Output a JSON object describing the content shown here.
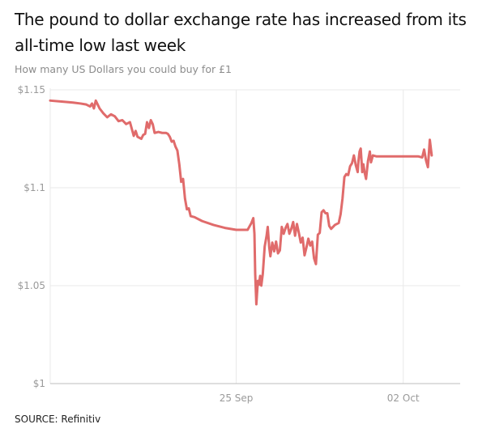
{
  "header": {
    "title": "The pound to dollar exchange rate has increased from its all-time low last week",
    "subtitle": "How many US Dollars you could buy for £1"
  },
  "footer": {
    "source": "SOURCE: Refinitiv"
  },
  "colors": {
    "line": "#e06b6b",
    "grid": "#e9e9e9",
    "axis": "#bdbdbd",
    "tick_text": "#9a9a9a"
  },
  "chart_data": {
    "type": "line",
    "title": "The pound to dollar exchange rate has increased from its all-time low last week",
    "subtitle": "How many US Dollars you could buy for £1",
    "xlabel": "",
    "ylabel": "",
    "ylim": [
      1.0,
      1.15
    ],
    "xlim": [
      0,
      10.8
    ],
    "grid": true,
    "legend": "none",
    "x_ticks": [
      {
        "x": 4.9,
        "label": "25 Sep"
      },
      {
        "x": 9.3,
        "label": "02 Oct"
      }
    ],
    "y_ticks": [
      {
        "y": 1.0,
        "label": "$1"
      },
      {
        "y": 1.05,
        "label": "$1.05"
      },
      {
        "y": 1.1,
        "label": "$1.1"
      },
      {
        "y": 1.15,
        "label": "$1.15"
      }
    ],
    "series": [
      {
        "values": [
          [
            0.0,
            1.1445
          ],
          [
            0.3,
            1.144
          ],
          [
            0.6,
            1.1435
          ],
          [
            0.8,
            1.143
          ],
          [
            0.95,
            1.1425
          ],
          [
            1.05,
            1.1415
          ],
          [
            1.1,
            1.143
          ],
          [
            1.15,
            1.1405
          ],
          [
            1.2,
            1.1445
          ],
          [
            1.3,
            1.1405
          ],
          [
            1.4,
            1.138
          ],
          [
            1.5,
            1.136
          ],
          [
            1.6,
            1.1375
          ],
          [
            1.7,
            1.1365
          ],
          [
            1.8,
            1.134
          ],
          [
            1.9,
            1.1345
          ],
          [
            2.0,
            1.1325
          ],
          [
            2.1,
            1.1335
          ],
          [
            2.15,
            1.13
          ],
          [
            2.2,
            1.1265
          ],
          [
            2.25,
            1.129
          ],
          [
            2.3,
            1.126
          ],
          [
            2.4,
            1.125
          ],
          [
            2.45,
            1.127
          ],
          [
            2.5,
            1.1275
          ],
          [
            2.55,
            1.1335
          ],
          [
            2.6,
            1.1305
          ],
          [
            2.65,
            1.1345
          ],
          [
            2.7,
            1.1325
          ],
          [
            2.75,
            1.128
          ],
          [
            2.85,
            1.1285
          ],
          [
            2.95,
            1.128
          ],
          [
            3.05,
            1.128
          ],
          [
            3.1,
            1.1275
          ],
          [
            3.15,
            1.126
          ],
          [
            3.2,
            1.1235
          ],
          [
            3.25,
            1.124
          ],
          [
            3.3,
            1.121
          ],
          [
            3.35,
            1.119
          ],
          [
            3.4,
            1.112
          ],
          [
            3.45,
            1.103
          ],
          [
            3.5,
            1.1045
          ],
          [
            3.55,
            1.0945
          ],
          [
            3.6,
            1.089
          ],
          [
            3.65,
            1.0895
          ],
          [
            3.7,
            1.0855
          ],
          [
            3.8,
            1.085
          ],
          [
            4.0,
            1.083
          ],
          [
            4.3,
            1.081
          ],
          [
            4.6,
            1.0795
          ],
          [
            4.9,
            1.0785
          ],
          [
            5.2,
            1.0785
          ],
          [
            5.3,
            1.082
          ],
          [
            5.35,
            1.0845
          ],
          [
            5.38,
            1.0765
          ],
          [
            5.4,
            1.056
          ],
          [
            5.43,
            1.0405
          ],
          [
            5.47,
            1.0525
          ],
          [
            5.5,
            1.0505
          ],
          [
            5.53,
            1.055
          ],
          [
            5.56,
            1.05
          ],
          [
            5.6,
            1.056
          ],
          [
            5.65,
            1.07
          ],
          [
            5.7,
            1.0755
          ],
          [
            5.73,
            1.08
          ],
          [
            5.77,
            1.0695
          ],
          [
            5.8,
            1.065
          ],
          [
            5.85,
            1.072
          ],
          [
            5.9,
            1.0675
          ],
          [
            5.95,
            1.0725
          ],
          [
            6.0,
            1.0665
          ],
          [
            6.05,
            1.068
          ],
          [
            6.1,
            1.08
          ],
          [
            6.15,
            1.0765
          ],
          [
            6.2,
            1.0795
          ],
          [
            6.25,
            1.0815
          ],
          [
            6.3,
            1.0765
          ],
          [
            6.35,
            1.079
          ],
          [
            6.4,
            1.0825
          ],
          [
            6.45,
            1.0755
          ],
          [
            6.5,
            1.0815
          ],
          [
            6.55,
            1.077
          ],
          [
            6.6,
            1.072
          ],
          [
            6.65,
            1.0745
          ],
          [
            6.7,
            1.0655
          ],
          [
            6.75,
            1.0695
          ],
          [
            6.8,
            1.074
          ],
          [
            6.85,
            1.0705
          ],
          [
            6.9,
            1.0725
          ],
          [
            6.95,
            1.064
          ],
          [
            7.0,
            1.061
          ],
          [
            7.05,
            1.076
          ],
          [
            7.1,
            1.077
          ],
          [
            7.15,
            1.0875
          ],
          [
            7.2,
            1.0885
          ],
          [
            7.25,
            1.087
          ],
          [
            7.3,
            1.087
          ],
          [
            7.35,
            1.0805
          ],
          [
            7.4,
            1.079
          ],
          [
            7.5,
            1.081
          ],
          [
            7.6,
            1.082
          ],
          [
            7.65,
            1.0865
          ],
          [
            7.7,
            1.0945
          ],
          [
            7.75,
            1.1055
          ],
          [
            7.8,
            1.107
          ],
          [
            7.85,
            1.1065
          ],
          [
            7.9,
            1.111
          ],
          [
            7.95,
            1.1125
          ],
          [
            8.0,
            1.1165
          ],
          [
            8.05,
            1.1115
          ],
          [
            8.1,
            1.108
          ],
          [
            8.12,
            1.1135
          ],
          [
            8.15,
            1.1185
          ],
          [
            8.18,
            1.12
          ],
          [
            8.22,
            1.108
          ],
          [
            8.25,
            1.112
          ],
          [
            8.28,
            1.108
          ],
          [
            8.32,
            1.1045
          ],
          [
            8.37,
            1.1135
          ],
          [
            8.42,
            1.1185
          ],
          [
            8.45,
            1.113
          ],
          [
            8.5,
            1.1165
          ],
          [
            8.6,
            1.116
          ],
          [
            9.0,
            1.116
          ],
          [
            9.4,
            1.116
          ],
          [
            9.7,
            1.116
          ],
          [
            9.8,
            1.1155
          ],
          [
            9.85,
            1.1195
          ],
          [
            9.9,
            1.114
          ],
          [
            9.95,
            1.1105
          ],
          [
            10.0,
            1.1245
          ],
          [
            10.05,
            1.1165
          ]
        ]
      }
    ]
  }
}
